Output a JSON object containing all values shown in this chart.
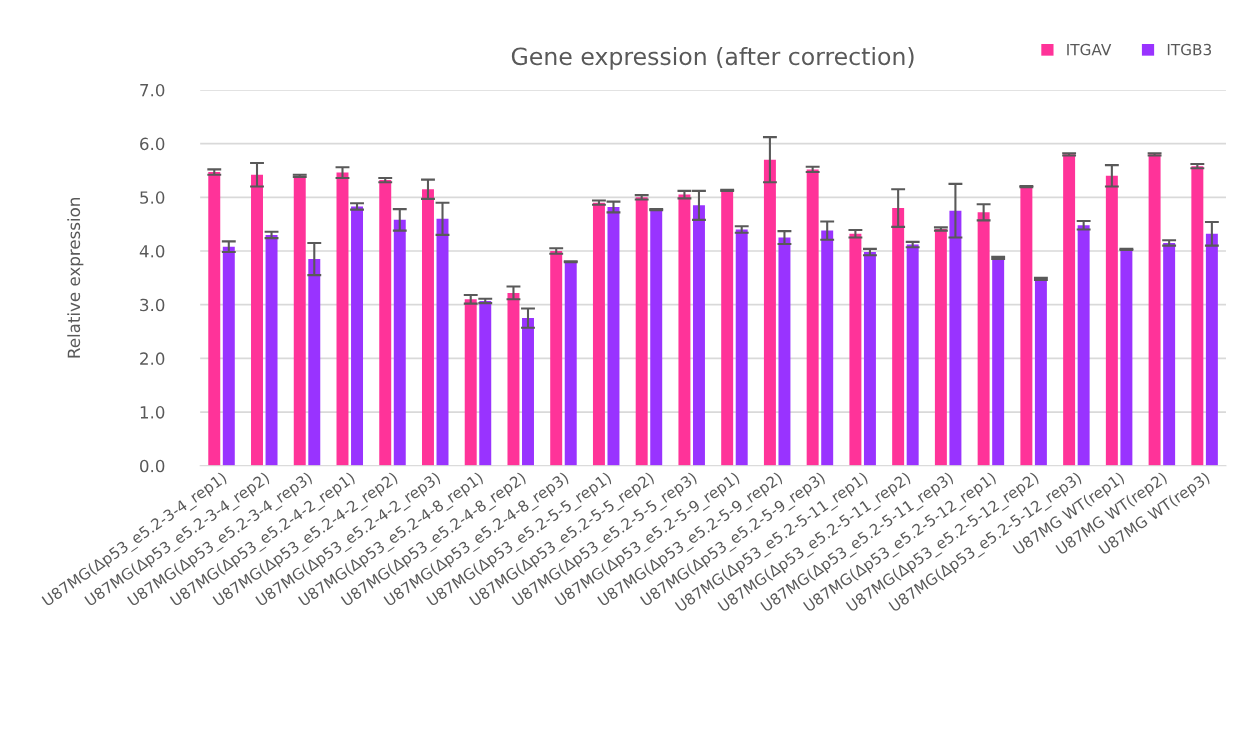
{
  "chart_data": {
    "type": "bar",
    "title": "Gene expression (after correction)",
    "ylabel": "Relative expression",
    "categories": [
      "U87MG(Δp53_e5.2-3-4_rep1)",
      "U87MG(Δp53_e5.2-3-4_rep2)",
      "U87MG(Δp53_e5.2-3-4_rep3)",
      "U87MG(Δp53_e5.2-4-2_rep1)",
      "U87MG(Δp53_e5.2-4-2_rep2)",
      "U87MG(Δp53_e5.2-4-2_rep3)",
      "U87MG(Δp53_e5.2-4-8_rep1)",
      "U87MG(Δp53_e5.2-4-8_rep2)",
      "U87MG(Δp53_e5.2-4-8_rep3)",
      "U87MG(Δp53_e5.2-5-5_rep1)",
      "U87MG(Δp53_e5.2-5-5_rep2)",
      "U87MG(Δp53_e5.2-5-5_rep3)",
      "U87MG(Δp53_e5.2-5-9_rep1)",
      "U87MG(Δp53_e5.2-5-9_rep2)",
      "U87MG(Δp53_e5.2-5-9_rep3)",
      "U87MG(Δp53_e5.2-5-11_rep1)",
      "U87MG(Δp53_e5.2-5-11_rep2)",
      "U87MG(Δp53_e5.2-5-11_rep3)",
      "U87MG(Δp53_e5.2-5-12_rep1)",
      "U87MG(Δp53_e5.2-5-12_rep2)",
      "U87MG(Δp53_e5.2-5-12_rep3)",
      "U87MG WT(rep1)",
      "U87MG WT(rep2)",
      "U87MG WT(rep3)"
    ],
    "series": [
      {
        "name": "ITGAV",
        "color": "#ff3399",
        "values": [
          5.47,
          5.42,
          5.4,
          5.46,
          5.32,
          5.15,
          3.1,
          3.22,
          4.0,
          4.9,
          5.0,
          5.05,
          5.13,
          5.7,
          5.52,
          4.32,
          4.8,
          4.41,
          4.72,
          5.2,
          5.8,
          5.4,
          5.8,
          5.58
        ],
        "errors": [
          0.05,
          0.22,
          0.02,
          0.1,
          0.04,
          0.18,
          0.08,
          0.12,
          0.05,
          0.04,
          0.04,
          0.07,
          0.01,
          0.42,
          0.05,
          0.07,
          0.35,
          0.03,
          0.15,
          0.01,
          0.02,
          0.2,
          0.02,
          0.04
        ]
      },
      {
        "name": "ITGB3",
        "color": "#9933ff",
        "values": [
          4.08,
          4.3,
          3.85,
          4.83,
          4.58,
          4.6,
          3.07,
          2.75,
          3.8,
          4.82,
          4.77,
          4.85,
          4.4,
          4.25,
          4.38,
          3.98,
          4.12,
          4.75,
          3.87,
          3.48,
          4.48,
          4.03,
          4.15,
          4.32
        ],
        "errors": [
          0.1,
          0.06,
          0.3,
          0.06,
          0.2,
          0.3,
          0.04,
          0.18,
          0.01,
          0.1,
          0.01,
          0.27,
          0.06,
          0.12,
          0.17,
          0.06,
          0.05,
          0.5,
          0.02,
          0.02,
          0.08,
          0.01,
          0.05,
          0.22
        ]
      }
    ],
    "ylim": [
      0,
      7
    ],
    "yticks": [
      {
        "value": 0,
        "label": "0.0"
      },
      {
        "value": 1,
        "label": "1.0"
      },
      {
        "value": 2,
        "label": "2.0"
      },
      {
        "value": 3,
        "label": "3.0"
      },
      {
        "value": 4,
        "label": "4.0"
      },
      {
        "value": 5,
        "label": "5.0"
      },
      {
        "value": 6,
        "label": "6.0"
      },
      {
        "value": 7,
        "label": "7.0"
      }
    ],
    "grid": "y",
    "legend": "top right"
  }
}
